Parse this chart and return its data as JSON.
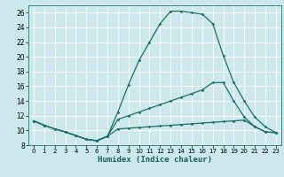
{
  "xlabel": "Humidex (Indice chaleur)",
  "background_color": "#cce8ec",
  "grid_color": "#ffffff",
  "line_color": "#1a6e6a",
  "xlim": [
    -0.5,
    23.5
  ],
  "ylim": [
    8,
    27
  ],
  "xticks": [
    0,
    1,
    2,
    3,
    4,
    5,
    6,
    7,
    8,
    9,
    10,
    11,
    12,
    13,
    14,
    15,
    16,
    17,
    18,
    19,
    20,
    21,
    22,
    23
  ],
  "yticks": [
    8,
    10,
    12,
    14,
    16,
    18,
    20,
    22,
    24,
    26
  ],
  "series": [
    {
      "x": [
        0,
        1,
        2,
        3,
        4,
        5,
        6,
        7,
        8,
        9,
        10,
        11,
        12,
        13,
        14,
        15,
        16,
        17,
        18,
        19,
        20,
        21,
        22,
        23
      ],
      "y": [
        11.3,
        10.7,
        10.2,
        9.8,
        9.3,
        8.8,
        8.6,
        9.2,
        10.2,
        10.3,
        10.4,
        10.5,
        10.6,
        10.7,
        10.8,
        10.9,
        11.0,
        11.1,
        11.2,
        11.3,
        11.4,
        10.5,
        9.8,
        9.7
      ]
    },
    {
      "x": [
        0,
        1,
        2,
        3,
        4,
        5,
        6,
        7,
        8,
        9,
        10,
        11,
        12,
        13,
        14,
        15,
        16,
        17,
        18,
        19,
        20,
        21,
        22,
        23
      ],
      "y": [
        11.3,
        10.7,
        10.2,
        9.8,
        9.3,
        8.8,
        8.6,
        9.2,
        11.5,
        12.0,
        12.5,
        13.0,
        13.5,
        14.0,
        14.5,
        15.0,
        15.5,
        16.5,
        16.5,
        14.0,
        11.8,
        10.5,
        9.8,
        9.7
      ]
    },
    {
      "x": [
        0,
        1,
        2,
        3,
        4,
        5,
        6,
        7,
        8,
        9,
        10,
        11,
        12,
        13,
        14,
        15,
        16,
        17,
        18,
        19,
        20,
        21,
        22,
        23
      ],
      "y": [
        11.3,
        10.7,
        10.2,
        9.8,
        9.3,
        8.8,
        8.6,
        9.2,
        12.5,
        16.2,
        19.5,
        22.0,
        24.5,
        26.2,
        26.2,
        26.0,
        25.8,
        24.5,
        20.2,
        16.5,
        14.0,
        11.8,
        10.5,
        9.7
      ]
    }
  ]
}
